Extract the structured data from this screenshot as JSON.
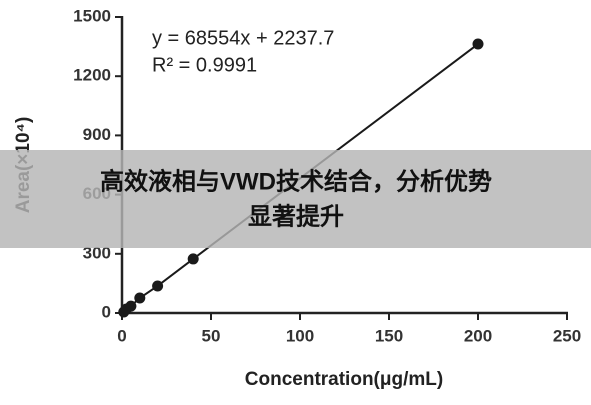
{
  "chart_data": {
    "type": "line",
    "annotations": [
      "y = 68554x + 2237.7",
      "R² = 0.9991"
    ],
    "x_label": "Concentration(μg/mL)",
    "y_label": "Area(×10⁴)",
    "x": [
      1,
      2.5,
      5,
      10,
      20,
      40,
      200
    ],
    "series": [
      {
        "color": "#1a1a1a",
        "values": [
          5,
          20,
          35,
          76,
          137,
          274,
          1363
        ]
      }
    ],
    "xlim": [
      0,
      250
    ],
    "xticks": [
      0,
      50,
      100,
      150,
      200,
      250
    ],
    "ylim": [
      0,
      1500
    ],
    "yticks": [
      0,
      300,
      600,
      900,
      1200,
      1500
    ],
    "grid": false
  },
  "banner": {
    "lines": [
      "高效液相与VWD技术结合，分析优势",
      "显著提升"
    ]
  }
}
